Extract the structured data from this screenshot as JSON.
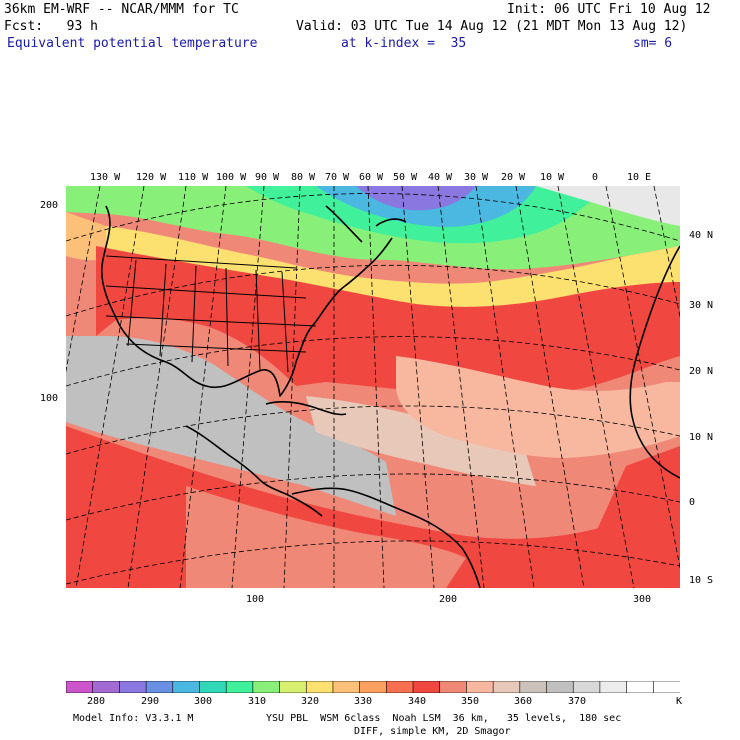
{
  "header": {
    "line1_left": "36km EM-WRF -- NCAR/MMM for TC",
    "line1_right": "Init: 06 UTC Fri 10 Aug 12",
    "line2_left": "Fcst:   93 h",
    "line2_right": "Valid: 03 UTC Tue 14 Aug 12 (21 MDT Mon 13 Aug 12)",
    "field": "Equivalent potential temperature",
    "level": "at k-index =  35",
    "smooth": "sm= 6"
  },
  "longitude_labels": [
    "130 W",
    "120 W",
    "110 W",
    "100 W",
    "90 W",
    "80 W",
    "70 W",
    "60 W",
    "50 W",
    "40 W",
    "30 W",
    "20 W",
    "10 W",
    "0",
    "10 E"
  ],
  "latitude_labels": [
    "40 N",
    "30 N",
    "20 N",
    "10 N",
    "0",
    "10 S"
  ],
  "grid_y_labels": [
    "200",
    "100"
  ],
  "grid_x_labels": [
    "100",
    "200",
    "300"
  ],
  "colorbar": {
    "colors": [
      "#cc55cc",
      "#a46ad4",
      "#8a78e0",
      "#6a90e4",
      "#4ab8e0",
      "#30d8b8",
      "#40f09a",
      "#88f078",
      "#d8f070",
      "#fce070",
      "#fcc078",
      "#fca060",
      "#f87050",
      "#f04840",
      "#f08878",
      "#f8b8a0",
      "#e8c8b8",
      "#ccc2bc",
      "#c0c0c0",
      "#d8d8d8",
      "#ececec",
      "#ffffff",
      "#ffffff"
    ],
    "labels": [
      "280",
      "290",
      "300",
      "310",
      "320",
      "330",
      "340",
      "350",
      "360",
      "370"
    ],
    "unit": "K"
  },
  "footer": {
    "line1_left": "Model Info: V3.3.1 M",
    "line1_right": "YSU PBL  WSM 6class  Noah LSM  36 km,   35 levels,  180 sec",
    "line2_right": "DIFF, simple KM, 2D Smagor"
  }
}
